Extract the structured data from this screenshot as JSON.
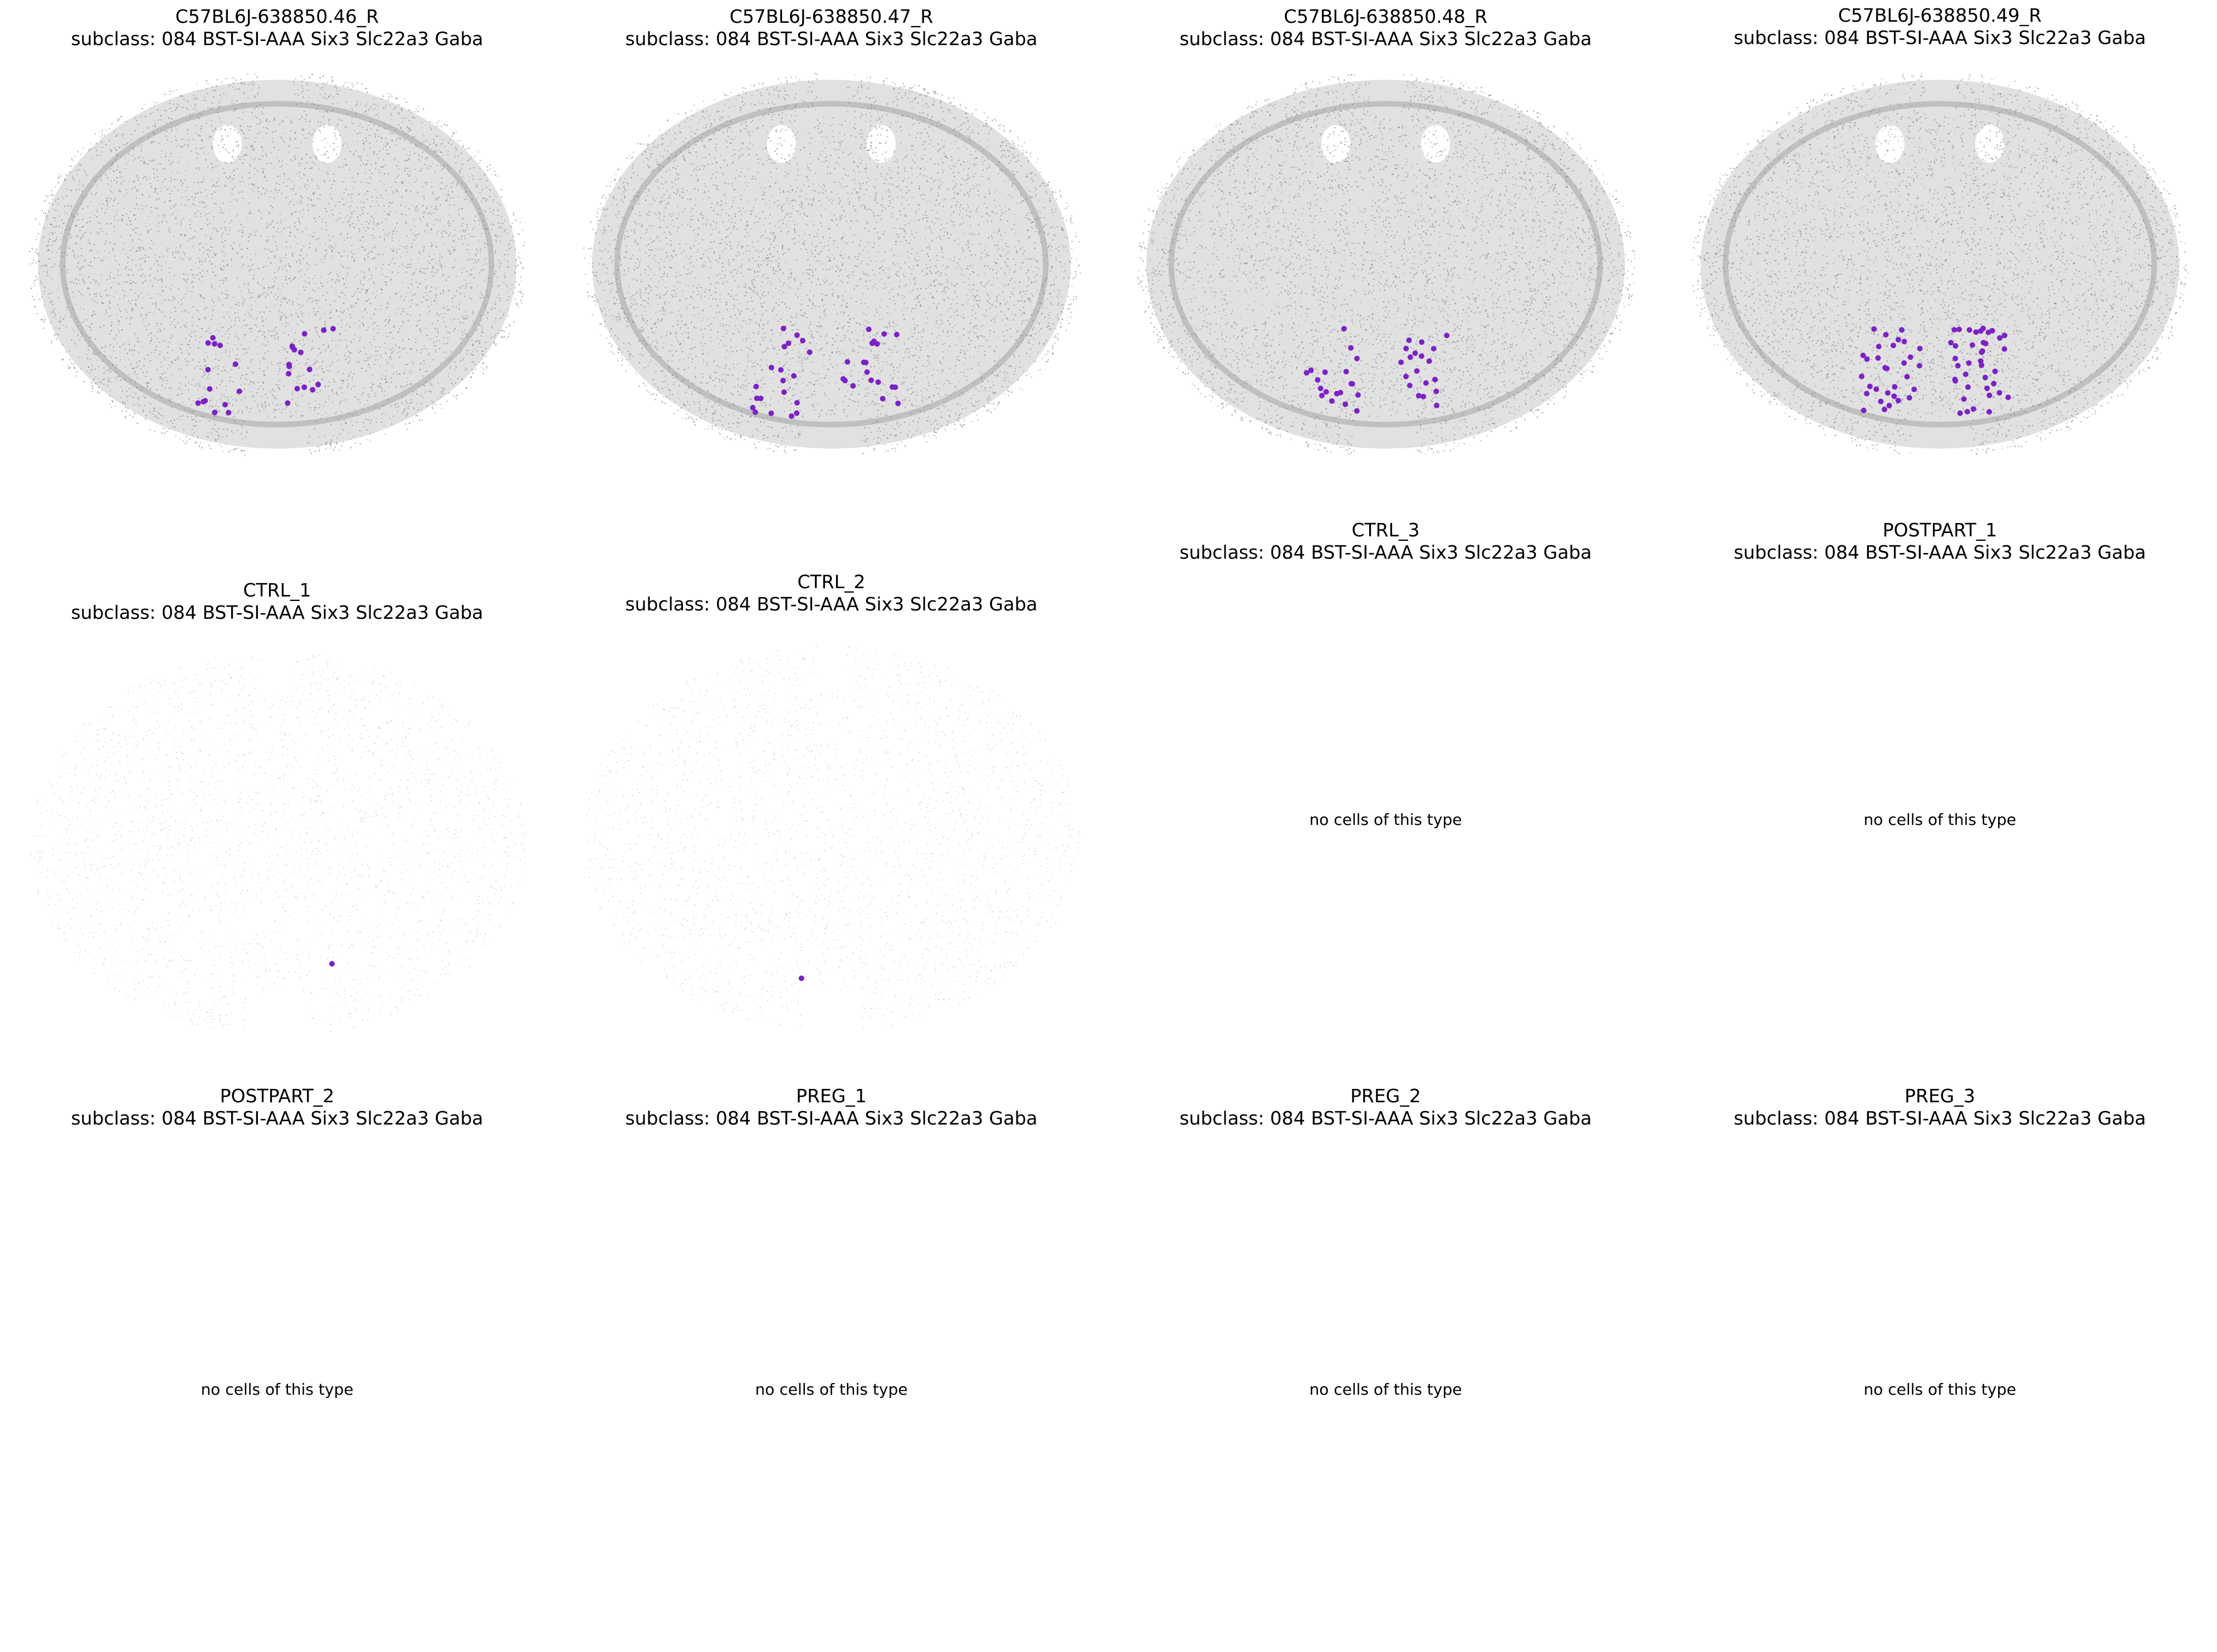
{
  "colors": {
    "highlight": "#7b22c6",
    "background_cell": "#8c8c8c",
    "background_cell_sparse": "#a6a6a6"
  },
  "chart_data": [
    {
      "type": "scatter",
      "title": "C57BL6J-638850.46_R",
      "subtitle": "subclass: 084 BST-SI-AAA Six3 Slc22a3 Gaba",
      "background": "dense",
      "highlight_count": 30,
      "empty_message": ""
    },
    {
      "type": "scatter",
      "title": "C57BL6J-638850.47_R",
      "subtitle": "subclass: 084 BST-SI-AAA Six3 Slc22a3 Gaba",
      "background": "dense",
      "highlight_count": 40,
      "empty_message": ""
    },
    {
      "type": "scatter",
      "title": "C57BL6J-638850.48_R",
      "subtitle": "subclass: 084 BST-SI-AAA Six3 Slc22a3 Gaba",
      "background": "dense",
      "highlight_count": 38,
      "empty_message": ""
    },
    {
      "type": "scatter",
      "title": "C57BL6J-638850.49_R",
      "subtitle": "subclass: 084 BST-SI-AAA Six3 Slc22a3 Gaba",
      "background": "dense",
      "highlight_count": 70,
      "empty_message": ""
    },
    {
      "type": "scatter",
      "title": "CTRL_1",
      "subtitle": "subclass: 084 BST-SI-AAA Six3 Slc22a3 Gaba",
      "background": "sparse",
      "highlight_count": 1,
      "empty_message": ""
    },
    {
      "type": "scatter",
      "title": "CTRL_2",
      "subtitle": "subclass: 084 BST-SI-AAA Six3 Slc22a3 Gaba",
      "background": "sparse",
      "highlight_count": 1,
      "empty_message": ""
    },
    {
      "type": "scatter",
      "title": "CTRL_3",
      "subtitle": "subclass: 084 BST-SI-AAA Six3 Slc22a3 Gaba",
      "background": "none",
      "highlight_count": 0,
      "empty_message": "no cells of this type"
    },
    {
      "type": "scatter",
      "title": "POSTPART_1",
      "subtitle": "subclass: 084 BST-SI-AAA Six3 Slc22a3 Gaba",
      "background": "none",
      "highlight_count": 0,
      "empty_message": "no cells of this type"
    },
    {
      "type": "scatter",
      "title": "POSTPART_2",
      "subtitle": "subclass: 084 BST-SI-AAA Six3 Slc22a3 Gaba",
      "background": "none",
      "highlight_count": 0,
      "empty_message": "no cells of this type"
    },
    {
      "type": "scatter",
      "title": "PREG_1",
      "subtitle": "subclass: 084 BST-SI-AAA Six3 Slc22a3 Gaba",
      "background": "none",
      "highlight_count": 0,
      "empty_message": "no cells of this type"
    },
    {
      "type": "scatter",
      "title": "PREG_2",
      "subtitle": "subclass: 084 BST-SI-AAA Six3 Slc22a3 Gaba",
      "background": "none",
      "highlight_count": 0,
      "empty_message": "no cells of this type"
    },
    {
      "type": "scatter",
      "title": "PREG_3",
      "subtitle": "subclass: 084 BST-SI-AAA Six3 Slc22a3 Gaba",
      "background": "none",
      "highlight_count": 0,
      "empty_message": "no cells of this type"
    }
  ]
}
